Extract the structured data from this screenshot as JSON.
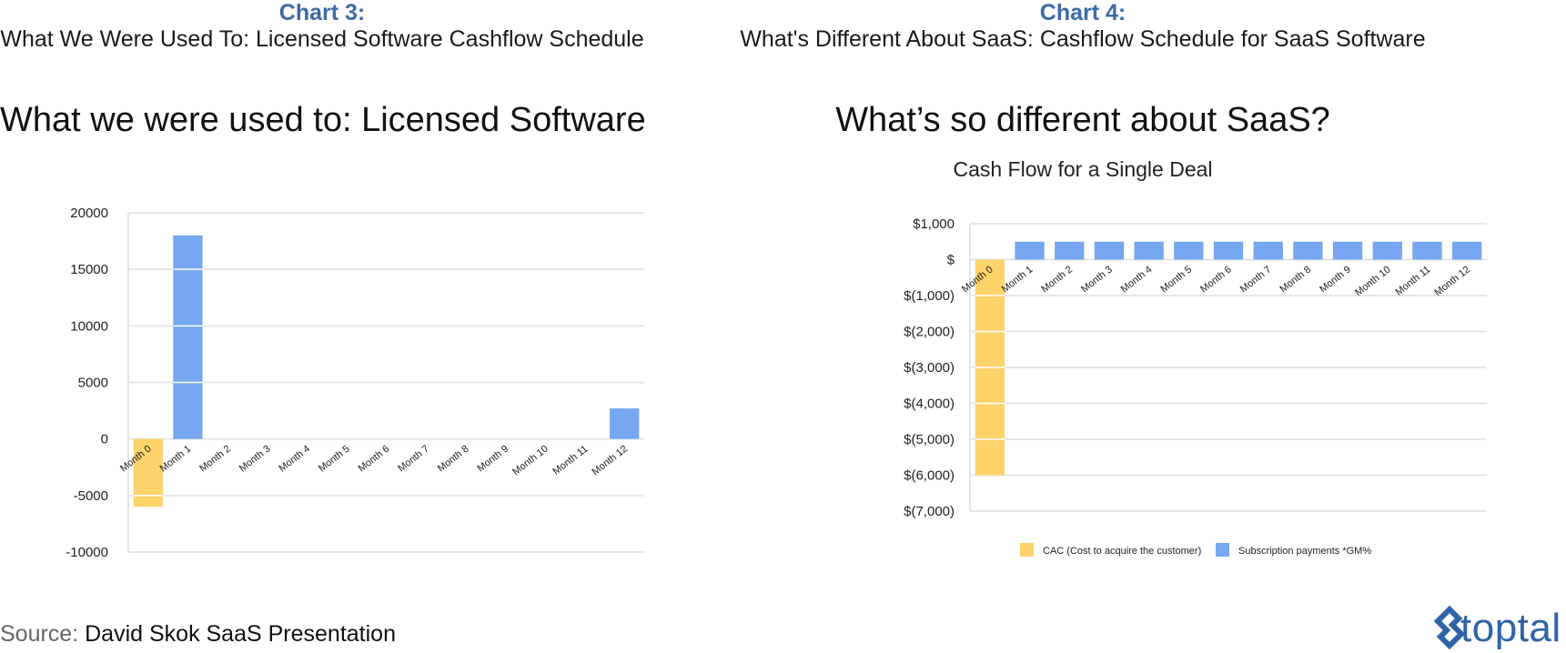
{
  "left_panel": {
    "chart_label": "Chart 3:",
    "description": "What We Were Used To: Licensed Software Cashflow Schedule",
    "title": "What we were used to: Licensed Software"
  },
  "right_panel": {
    "chart_label": "Chart 4:",
    "description": "What's Different About SaaS: Cashflow Schedule for SaaS Software",
    "title": "What’s so different about SaaS?",
    "subtitle": "Cash Flow for a Single Deal"
  },
  "source": {
    "prefix": "Source:",
    "name": "David Skok SaaS Presentation"
  },
  "logo": {
    "text": "toptal",
    "icon": "toptal-mark-icon"
  },
  "colors": {
    "cac": "#ffd36b",
    "subscription": "#76a7f0",
    "heading_blue": "#3d6aa8",
    "grid": "#e6e6e6"
  },
  "chart_data": [
    {
      "type": "bar",
      "categories": [
        "Month 0",
        "Month 1",
        "Month 2",
        "Month 3",
        "Month 4",
        "Month 5",
        "Month 6",
        "Month 7",
        "Month 8",
        "Month 9",
        "Month 10",
        "Month 11",
        "Month 12"
      ],
      "values": [
        -6000,
        18000,
        0,
        0,
        0,
        0,
        0,
        0,
        0,
        0,
        0,
        0,
        2700
      ],
      "bar_colors": [
        "cac",
        "subscription",
        "subscription",
        "subscription",
        "subscription",
        "subscription",
        "subscription",
        "subscription",
        "subscription",
        "subscription",
        "subscription",
        "subscription",
        "subscription"
      ],
      "ylim": [
        -10000,
        20000
      ],
      "yticks": [
        20000,
        15000,
        10000,
        5000,
        0,
        -5000,
        -10000
      ],
      "ytick_labels": [
        "20000",
        "15000",
        "10000",
        "5000",
        "0",
        "-5000",
        "-10000"
      ],
      "grid": true,
      "legend": []
    },
    {
      "type": "bar",
      "title": "Cash Flow for a Single Deal",
      "categories": [
        "Month 0",
        "Month 1",
        "Month 2",
        "Month 3",
        "Month 4",
        "Month 5",
        "Month 6",
        "Month 7",
        "Month 8",
        "Month 9",
        "Month 10",
        "Month 11",
        "Month 12"
      ],
      "series": [
        {
          "name": "CAC (Cost to acquire the customer)",
          "color": "cac",
          "values": [
            -6000,
            0,
            0,
            0,
            0,
            0,
            0,
            0,
            0,
            0,
            0,
            0,
            0
          ]
        },
        {
          "name": "Subscription payments *GM%",
          "color": "subscription",
          "values": [
            0,
            500,
            500,
            500,
            500,
            500,
            500,
            500,
            500,
            500,
            500,
            500,
            500
          ]
        }
      ],
      "ylim": [
        -7000,
        1000
      ],
      "yticks": [
        1000,
        0,
        -1000,
        -2000,
        -3000,
        -4000,
        -5000,
        -6000,
        -7000
      ],
      "ytick_labels": [
        "$1,000",
        "$",
        "$(1,000)",
        "$(2,000)",
        "$(3,000)",
        "$(4,000)",
        "$(5,000)",
        "$(6,000)",
        "$(7,000)"
      ],
      "grid": true,
      "legend": [
        "CAC (Cost to acquire the customer)",
        "Subscription payments *GM%"
      ]
    }
  ]
}
